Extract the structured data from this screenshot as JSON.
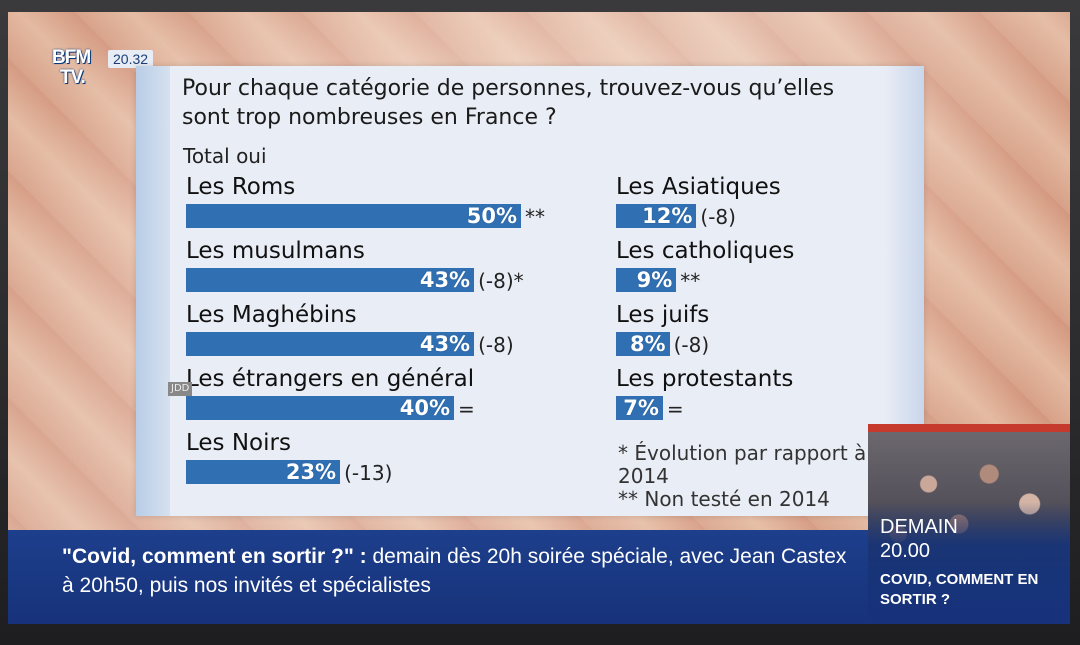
{
  "channel": {
    "logo_line1": "BFM",
    "logo_line2": "TV.",
    "clock": "20.32"
  },
  "chart_data": {
    "type": "bar",
    "title": "Pour chaque catégorie de personnes, trouvez-vous qu’elles sont trop nombreuses en France ?",
    "subtitle": "Total oui",
    "unit": "%",
    "xlim": [
      0,
      50
    ],
    "legend": "",
    "categories": [
      "Les Roms",
      "Les musulmans",
      "Les Maghébins",
      "Les étrangers en général",
      "Les Noirs",
      "Les Asiatiques",
      "Les catholiques",
      "Les juifs",
      "Les protestants"
    ],
    "values": [
      50,
      43,
      43,
      40,
      23,
      12,
      9,
      8,
      7
    ],
    "value_labels": [
      "50%",
      "43%",
      "43%",
      "40%",
      "23%",
      "12%",
      "9%",
      "8%",
      "7%"
    ],
    "notes": [
      "**",
      "(-8)*",
      "(-8)",
      "=",
      "(-13)",
      "(-8)",
      "**",
      "(-8)",
      "="
    ],
    "footnotes": [
      "* Évolution par rapport à 2014",
      "** Non testé en 2014"
    ],
    "bar_color": "#2f6fb2"
  },
  "source_tag": "JDD",
  "ticker": {
    "highlight": "\"Covid, comment en sortir ?\" :",
    "text": " demain dès 20h soirée spéciale, avec Jean Castex à 20h50, puis nos invités et spécialistes"
  },
  "promo": {
    "label": "DEMAIN",
    "time": "20.00",
    "title": "COVID, COMMENT EN SORTIR ?"
  }
}
